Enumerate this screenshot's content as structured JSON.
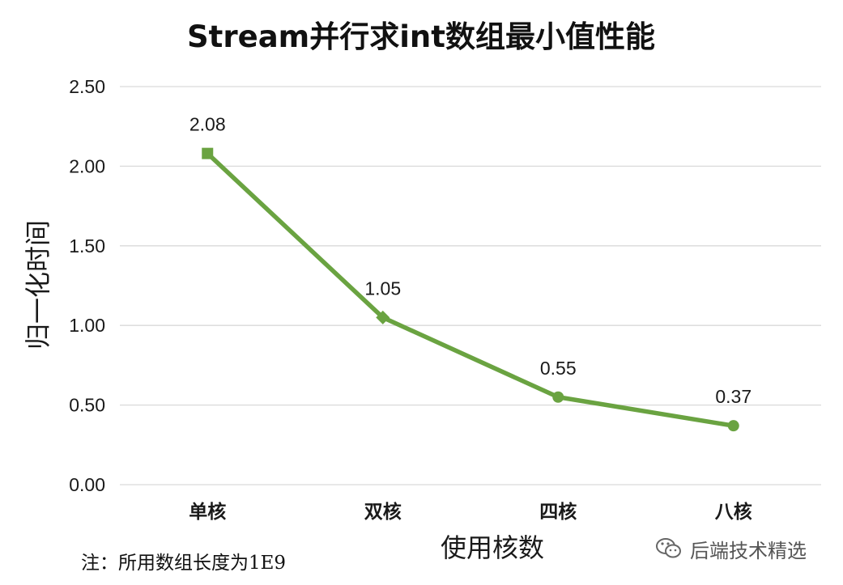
{
  "chart_data": {
    "type": "line",
    "title": "Stream并行求int数组最小值性能",
    "xlabel": "使用核数",
    "ylabel": "归一化时间",
    "categories": [
      "单核",
      "双核",
      "四核",
      "八核"
    ],
    "series": [
      {
        "values": [
          2.08,
          1.05,
          0.55,
          0.37
        ],
        "color": "#6aa341",
        "data_labels": [
          "2.08",
          "1.05",
          "0.55",
          "0.37"
        ],
        "markers": [
          "square",
          "diamond",
          "circle",
          "circle"
        ]
      }
    ],
    "yticks": [
      "0.00",
      "0.50",
      "1.00",
      "1.50",
      "2.00",
      "2.50"
    ],
    "ylim": [
      0,
      2.5
    ],
    "grid": true,
    "legend": "none",
    "gridline_color": "#d9d9d9"
  },
  "note": "注：所用数组长度为1E9",
  "watermark": {
    "text": "后端技术精选",
    "icon": "wechat-icon"
  }
}
